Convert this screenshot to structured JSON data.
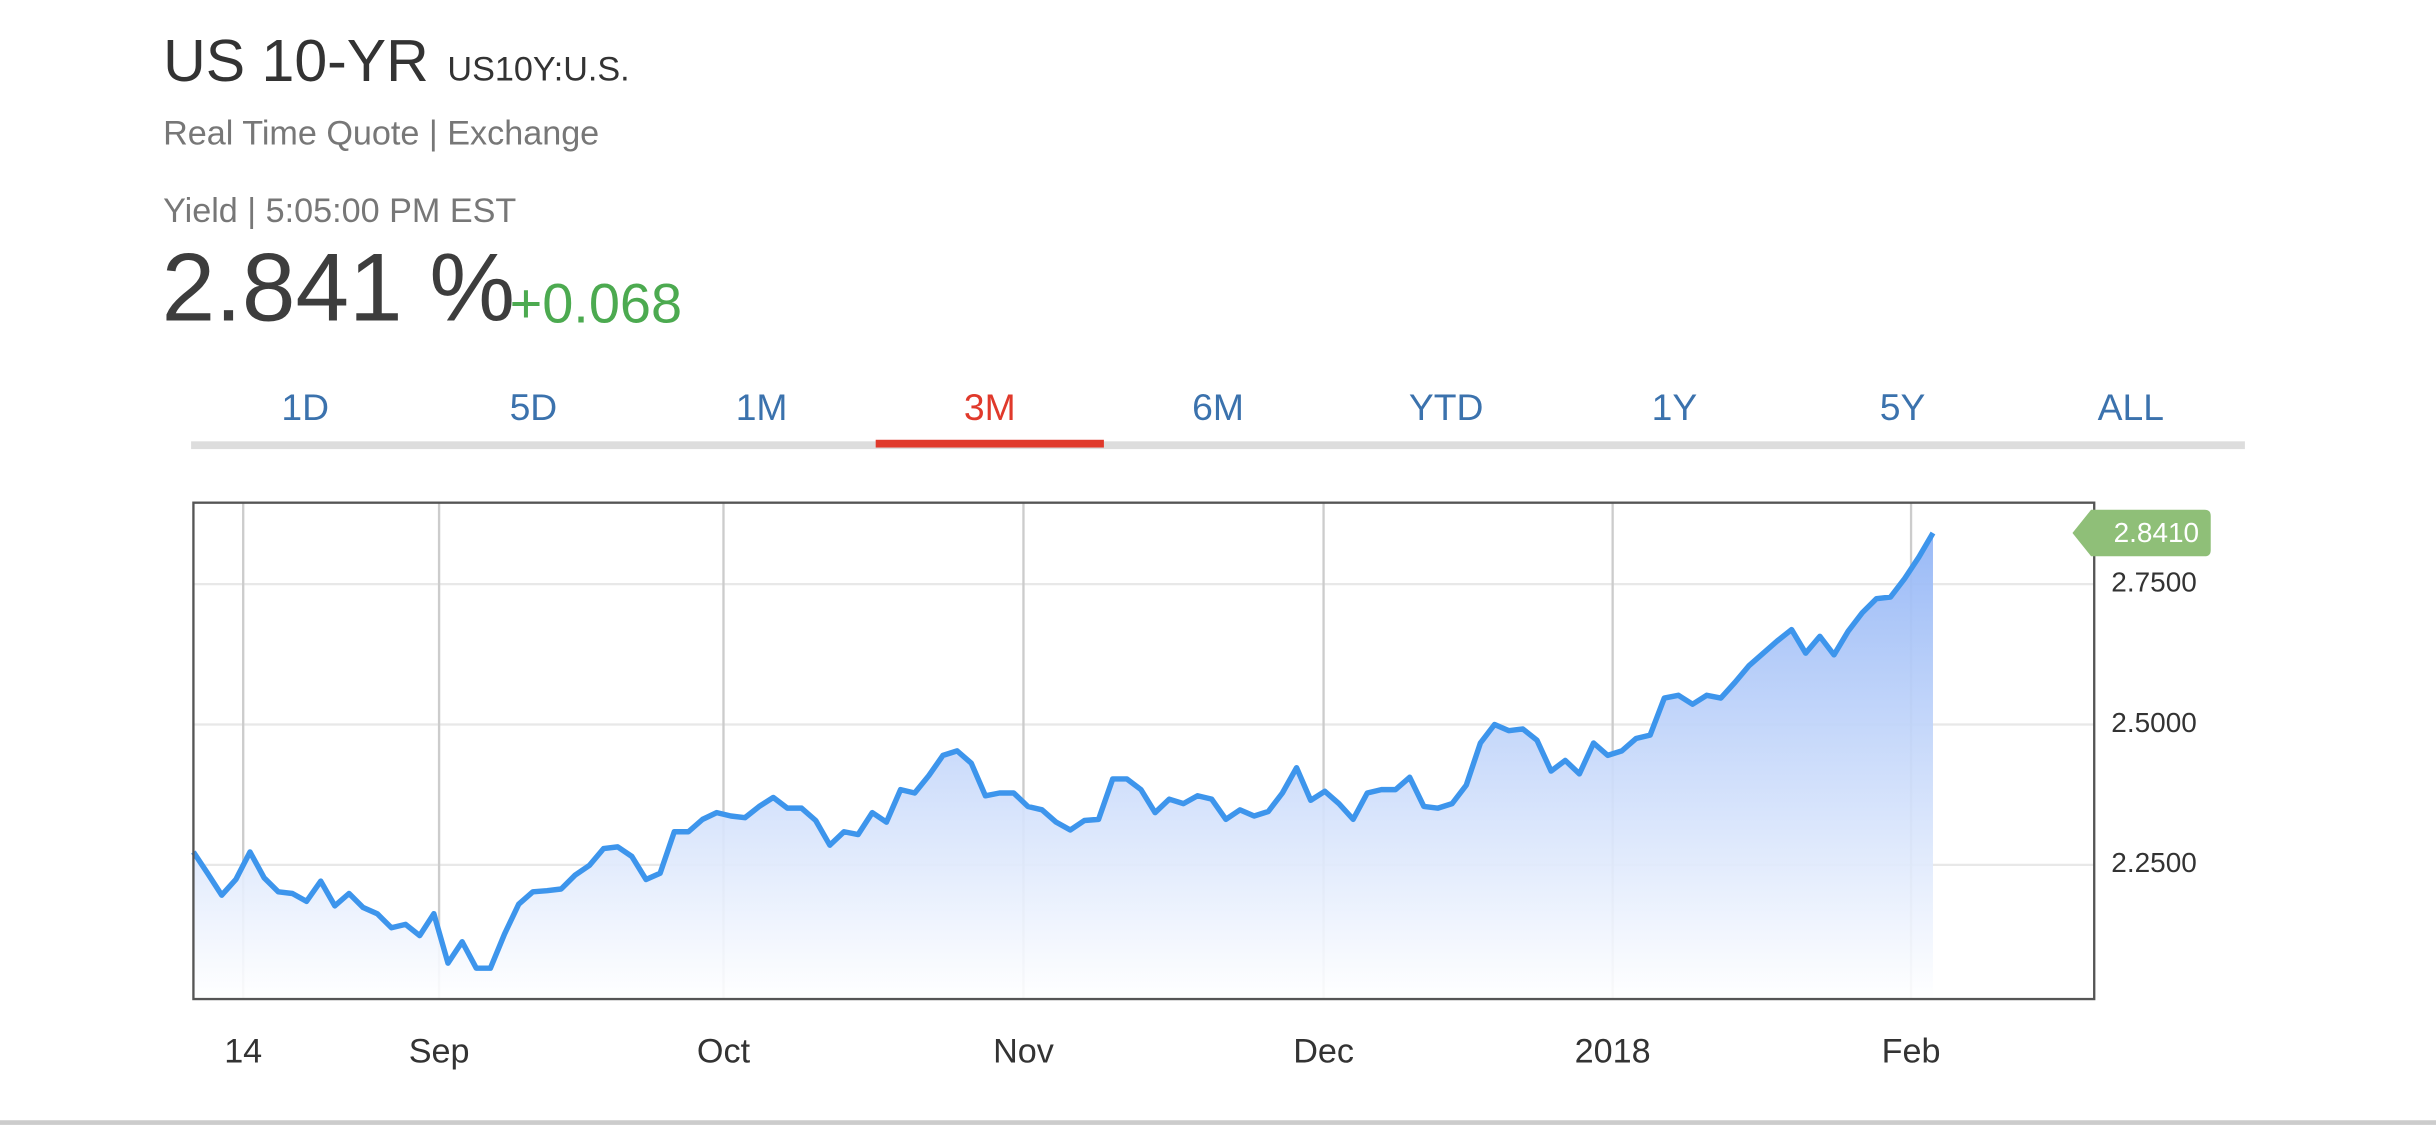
{
  "header": {
    "title": "US 10-YR",
    "symbol": "US10Y:U.S.",
    "source": "Real Time Quote | Exchange",
    "time": "Yield | 5:05:00 PM EST",
    "price": "2.841 %",
    "change": "+0.068"
  },
  "tabs": {
    "items": [
      "1D",
      "5D",
      "1M",
      "3M",
      "6M",
      "YTD",
      "1Y",
      "5Y",
      "ALL"
    ],
    "selected": 3
  },
  "chart_data": {
    "type": "line",
    "color": "#3d95ec",
    "grid": true,
    "values": [
      2.273,
      2.235,
      2.196,
      2.224,
      2.273,
      2.227,
      2.202,
      2.199,
      2.185,
      2.221,
      2.177,
      2.199,
      2.174,
      2.163,
      2.138,
      2.144,
      2.124,
      2.163,
      2.075,
      2.113,
      2.066,
      2.066,
      2.127,
      2.18,
      2.202,
      2.204,
      2.207,
      2.232,
      2.249,
      2.279,
      2.282,
      2.265,
      2.224,
      2.235,
      2.309,
      2.309,
      2.331,
      2.343,
      2.337,
      2.334,
      2.354,
      2.37,
      2.351,
      2.351,
      2.329,
      2.285,
      2.309,
      2.304,
      2.343,
      2.326,
      2.384,
      2.378,
      2.409,
      2.445,
      2.453,
      2.431,
      2.373,
      2.378,
      2.378,
      2.354,
      2.348,
      2.326,
      2.312,
      2.329,
      2.331,
      2.403,
      2.403,
      2.384,
      2.343,
      2.367,
      2.359,
      2.373,
      2.367,
      2.331,
      2.348,
      2.337,
      2.345,
      2.378,
      2.423,
      2.365,
      2.381,
      2.359,
      2.331,
      2.378,
      2.384,
      2.384,
      2.406,
      2.354,
      2.351,
      2.359,
      2.392,
      2.467,
      2.5,
      2.489,
      2.492,
      2.472,
      2.417,
      2.436,
      2.412,
      2.467,
      2.445,
      2.453,
      2.475,
      2.481,
      2.547,
      2.552,
      2.536,
      2.552,
      2.547,
      2.575,
      2.605,
      2.627,
      2.649,
      2.669,
      2.627,
      2.657,
      2.624,
      2.666,
      2.699,
      2.724,
      2.727,
      2.76,
      2.798,
      2.841
    ],
    "xlim": [
      0,
      134.4
    ],
    "xticks": [
      {
        "value": 3.52,
        "label": "14"
      },
      {
        "value": 17.37,
        "label": "Sep"
      },
      {
        "value": 37.48,
        "label": "Oct"
      },
      {
        "value": 58.69,
        "label": "Nov"
      },
      {
        "value": 79.91,
        "label": "Dec"
      },
      {
        "value": 100.35,
        "label": "2018"
      },
      {
        "value": 121.45,
        "label": "Feb"
      }
    ],
    "ylim": [
      2.011,
      2.895
    ],
    "yticks": [
      {
        "value": 2.25,
        "label": "2.2500"
      },
      {
        "value": 2.5,
        "label": "2.5000"
      },
      {
        "value": 2.75,
        "label": "2.7500"
      }
    ],
    "annotations": [
      {
        "value": 2.841,
        "label": "2.8410"
      }
    ]
  }
}
